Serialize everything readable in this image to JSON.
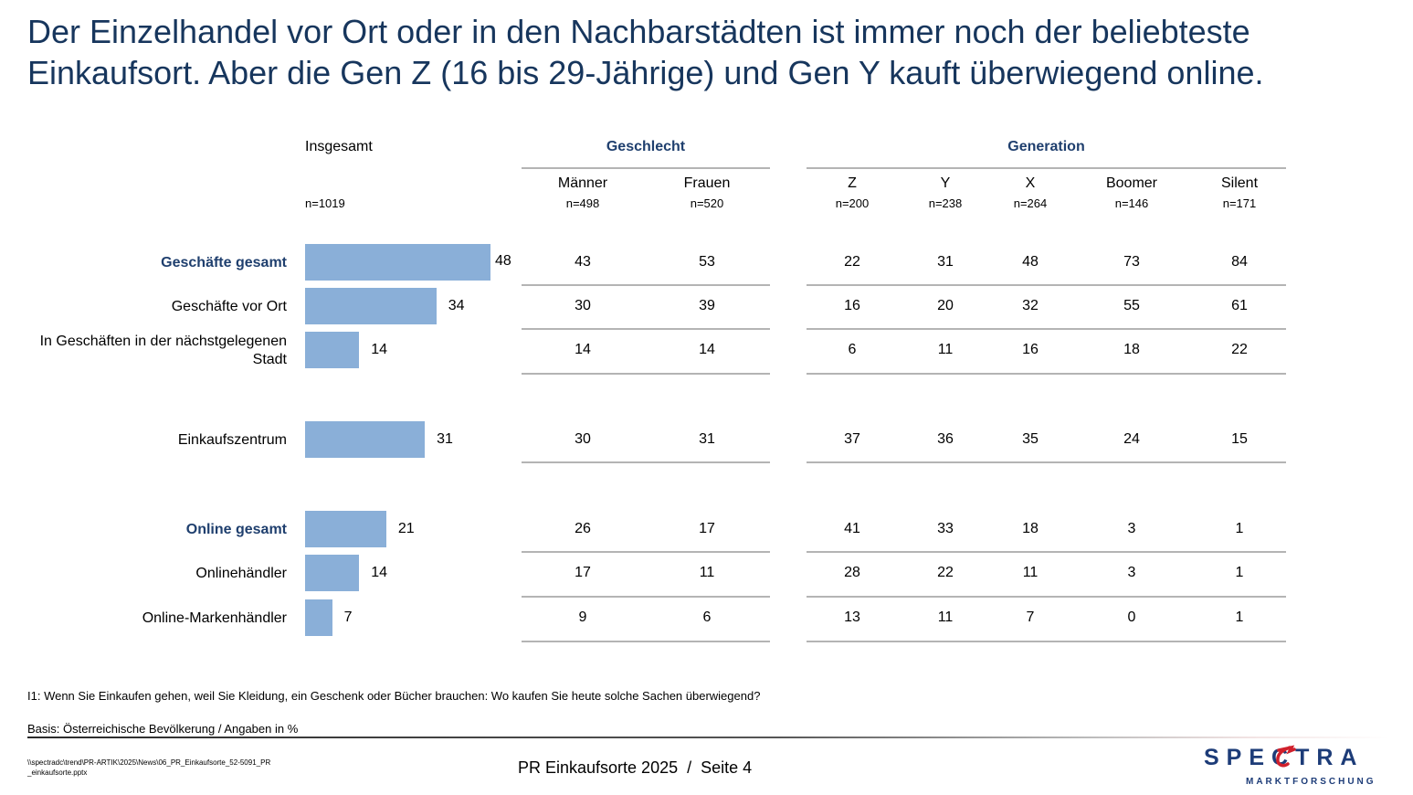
{
  "title": "Der Einzelhandel vor Ort oder in den Nachbarstädten ist immer noch der beliebteste Einkaufsort. Aber die Gen Z (16 bis 29-Jährige) und Gen Y kauft überwiegend online.",
  "header": {
    "total_label": "Insgesamt",
    "total_n": "n=1019",
    "group_gender": "Geschlecht",
    "group_generation": "Generation"
  },
  "columns": [
    {
      "name": "Männer",
      "n": "n=498"
    },
    {
      "name": "Frauen",
      "n": "n=520"
    },
    {
      "name": "Z",
      "n": "n=200"
    },
    {
      "name": "Y",
      "n": "n=238"
    },
    {
      "name": "X",
      "n": "n=264"
    },
    {
      "name": "Boomer",
      "n": "n=146"
    },
    {
      "name": "Silent",
      "n": "n=171"
    }
  ],
  "rows": [
    {
      "label": "Geschäfte gesamt",
      "bold": true,
      "total": "48",
      "values": [
        "43",
        "53",
        "22",
        "31",
        "48",
        "73",
        "84"
      ]
    },
    {
      "label": "Geschäfte vor Ort",
      "bold": false,
      "total": "34",
      "values": [
        "30",
        "39",
        "16",
        "20",
        "32",
        "55",
        "61"
      ]
    },
    {
      "label": "In Geschäften in der nächstgelegenen Stadt",
      "bold": false,
      "total": "14",
      "values": [
        "14",
        "14",
        "6",
        "11",
        "16",
        "18",
        "22"
      ]
    },
    {
      "label": "Einkaufszentrum",
      "bold": false,
      "total": "31",
      "values": [
        "30",
        "31",
        "37",
        "36",
        "35",
        "24",
        "15"
      ]
    },
    {
      "label": "Online gesamt",
      "bold": true,
      "total": "21",
      "values": [
        "26",
        "17",
        "41",
        "33",
        "18",
        "3",
        "1"
      ]
    },
    {
      "label": "Onlinehändler",
      "bold": false,
      "total": "14",
      "values": [
        "17",
        "11",
        "28",
        "22",
        "11",
        "3",
        "1"
      ]
    },
    {
      "label": "Online-Markenhändler",
      "bold": false,
      "total": "7",
      "values": [
        "9",
        "6",
        "13",
        "11",
        "7",
        "0",
        "1"
      ]
    }
  ],
  "chart_data": {
    "type": "bar",
    "orientation": "horizontal",
    "title": "Insgesamt",
    "categories": [
      "Geschäfte gesamt",
      "Geschäfte vor Ort",
      "In Geschäften in der nächstgelegenen Stadt",
      "Einkaufszentrum",
      "Online gesamt",
      "Onlinehändler",
      "Online-Markenhändler"
    ],
    "values": [
      48,
      34,
      14,
      31,
      21,
      14,
      7
    ],
    "unit": "%",
    "bar_color": "#8aafd8",
    "table_series": [
      {
        "name": "Männer",
        "values": [
          43,
          30,
          14,
          30,
          26,
          17,
          9
        ]
      },
      {
        "name": "Frauen",
        "values": [
          53,
          39,
          14,
          31,
          17,
          11,
          6
        ]
      },
      {
        "name": "Z",
        "values": [
          22,
          16,
          6,
          37,
          41,
          28,
          13
        ]
      },
      {
        "name": "Y",
        "values": [
          31,
          20,
          11,
          36,
          33,
          22,
          11
        ]
      },
      {
        "name": "X",
        "values": [
          48,
          32,
          16,
          35,
          18,
          11,
          7
        ]
      },
      {
        "name": "Boomer",
        "values": [
          73,
          55,
          18,
          24,
          3,
          3,
          0
        ]
      },
      {
        "name": "Silent",
        "values": [
          84,
          61,
          22,
          15,
          1,
          1,
          1
        ]
      }
    ]
  },
  "footer": {
    "question": "I1: Wenn Sie Einkaufen gehen, weil Sie Kleidung, ein Geschenk oder Bücher brauchen: Wo kaufen Sie heute solche Sachen überwiegend?",
    "basis": "Basis: Österreichische Bevölkerung / Angaben in %",
    "file_path": "\\\\spectradc\\trend\\PR-ARTIK\\2025\\News\\06_PR_Einkaufsorte_52-5091_PR_einkaufsorte.pptx",
    "page_label": "PR Einkaufsorte 2025  /  Seite 4",
    "logo_text": "SPECTRA",
    "logo_subtext": "MARKTFORSCHUNG",
    "brand_color": "#1d3c78",
    "accent_color": "#d0202c"
  }
}
